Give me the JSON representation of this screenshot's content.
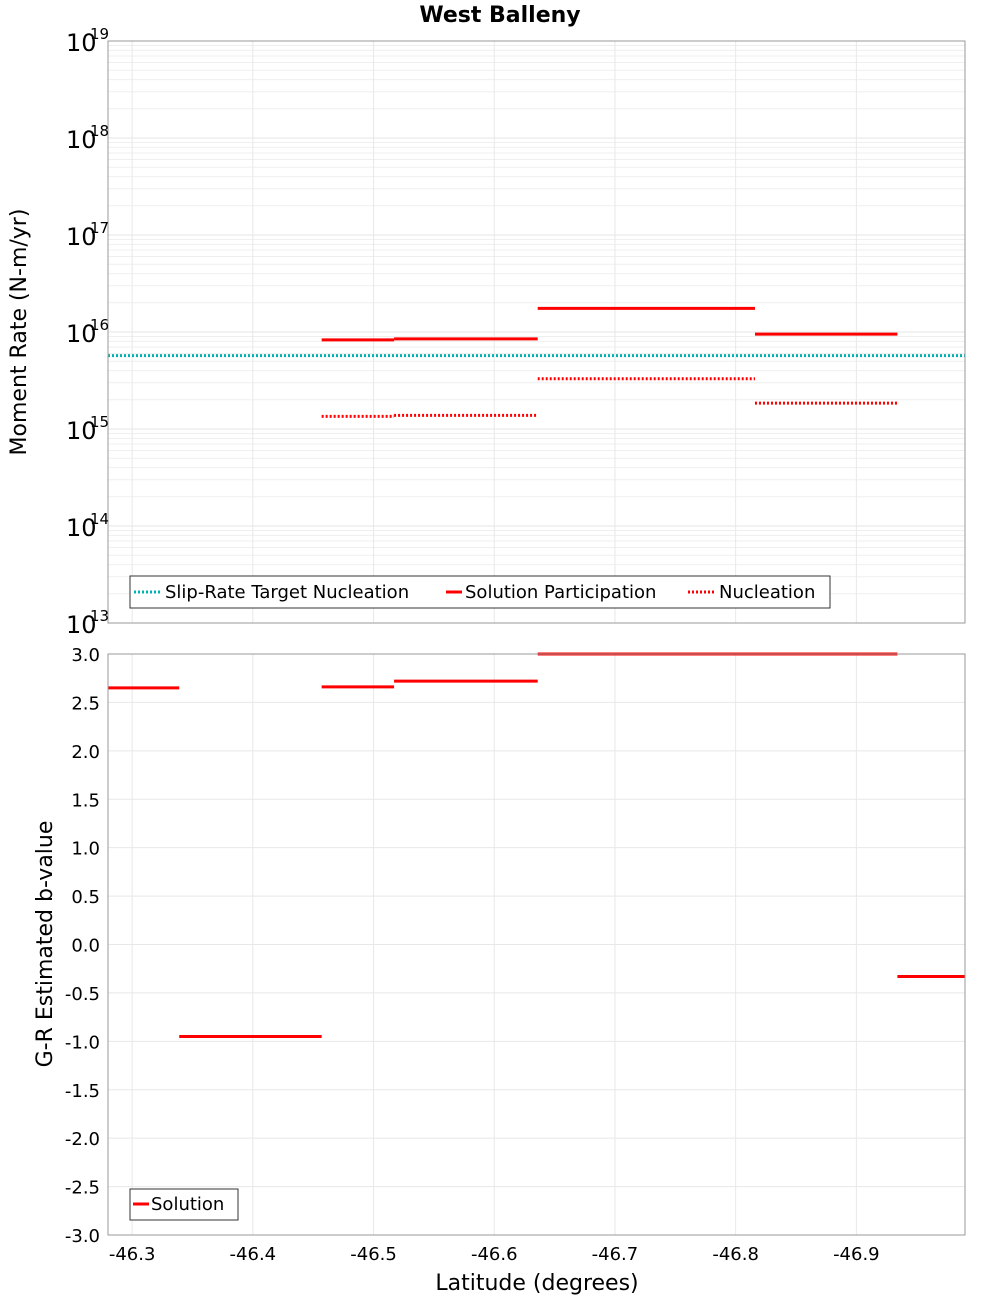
{
  "chart_data": [
    {
      "type": "line",
      "title": "West Balleny",
      "xlabel": "Latitude (degrees)",
      "ylabel": "Moment Rate (N-m/yr)",
      "yscale": "log",
      "ylim_exponent": [
        13,
        19
      ],
      "y_tick_base": "10",
      "y_tick_exponents": [
        "13",
        "14",
        "15",
        "16",
        "17",
        "18",
        "19"
      ],
      "xlim": [
        -46.28,
        -46.99
      ],
      "x_ticks": [
        -46.3,
        -46.4,
        -46.5,
        -46.6,
        -46.7,
        -46.8,
        -46.9
      ],
      "series": [
        {
          "name": "Slip-Rate Target Nucleation",
          "style": "dotted",
          "color": "#00b3b3",
          "segments": [
            {
              "x0": -46.28,
              "x1": -46.99,
              "y": 5700000000000000.0
            }
          ]
        },
        {
          "name": "Solution Participation",
          "style": "solid",
          "color": "#ff0000",
          "segments": [
            {
              "x0": -46.457,
              "x1": -46.517,
              "y": 8300000000000000.0
            },
            {
              "x0": -46.517,
              "x1": -46.636,
              "y": 8500000000000000.0
            },
            {
              "x0": -46.636,
              "x1": -46.816,
              "y": 1.75e+16
            },
            {
              "x0": -46.816,
              "x1": -46.934,
              "y": 9500000000000000.0
            }
          ]
        },
        {
          "name": "Nucleation",
          "style": "dotted",
          "color": "#ff0000",
          "segments": [
            {
              "x0": -46.457,
              "x1": -46.517,
              "y": 1350000000000000.0
            },
            {
              "x0": -46.517,
              "x1": -46.636,
              "y": 1380000000000000.0
            },
            {
              "x0": -46.636,
              "x1": -46.816,
              "y": 3300000000000000.0
            },
            {
              "x0": -46.816,
              "x1": -46.934,
              "y": 1850000000000000.0
            }
          ]
        }
      ],
      "legend": [
        "Slip-Rate Target Nucleation",
        "Solution Participation",
        "Nucleation"
      ],
      "legend_position": "bottom-left"
    },
    {
      "type": "line",
      "title": "",
      "xlabel": "Latitude (degrees)",
      "ylabel": "G-R Estimated b-value",
      "ylim": [
        -3.0,
        3.0
      ],
      "y_ticks": [
        "3.0",
        "2.5",
        "2.0",
        "1.5",
        "1.0",
        "0.5",
        "0.0",
        "-0.5",
        "-1.0",
        "-1.5",
        "-2.0",
        "-2.5",
        "-3.0"
      ],
      "x_tick_labels": [
        "-46.3",
        "-46.4",
        "-46.5",
        "-46.6",
        "-46.7",
        "-46.8",
        "-46.9"
      ],
      "series": [
        {
          "name": "Solution",
          "style": "solid",
          "color": "#ff0000",
          "segments": [
            {
              "x0": -46.28,
              "x1": -46.339,
              "y": 2.65
            },
            {
              "x0": -46.339,
              "x1": -46.457,
              "y": -0.95
            },
            {
              "x0": -46.457,
              "x1": -46.517,
              "y": 2.66
            },
            {
              "x0": -46.517,
              "x1": -46.636,
              "y": 2.72
            },
            {
              "x0": -46.636,
              "x1": -46.934,
              "y": 3.0
            },
            {
              "x0": -46.934,
              "x1": -46.99,
              "y": -0.33
            }
          ]
        }
      ],
      "legend": [
        "Solution"
      ],
      "legend_position": "bottom-left"
    }
  ]
}
